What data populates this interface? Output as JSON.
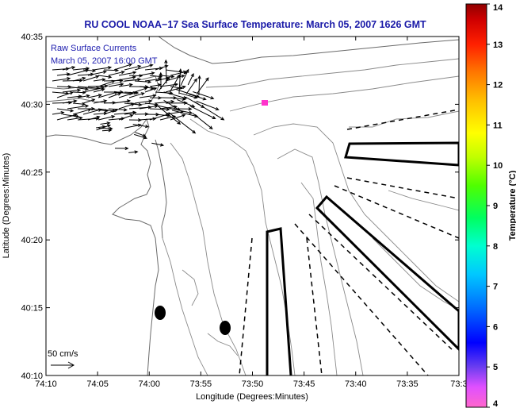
{
  "title": "RU COOL  NOAA−17  Sea Surface Temperature:  March 05, 2007 1626 GMT",
  "legend": {
    "line1": "Raw Surface Currents",
    "line2": "March 05, 2007 16:00 GMT"
  },
  "scale_label": "50 cm/s",
  "x_axis": {
    "label": "Longitude (Degrees:Minutes)",
    "ticks": [
      "74:10",
      "74:05",
      "74:00",
      "73:55",
      "73:50",
      "73:45",
      "73:40",
      "73:35",
      "73:3"
    ]
  },
  "y_axis": {
    "label": "Latitude (Degrees:Minutes)",
    "ticks": [
      "40:35",
      "40:30",
      "40:25",
      "40:20",
      "40:15",
      "40:10"
    ]
  },
  "colorbar": {
    "label": "Temperature (°C)",
    "ticks": [
      "14",
      "13",
      "12",
      "11",
      "10",
      "9",
      "8",
      "7",
      "6",
      "5",
      "4"
    ],
    "range": [
      4,
      14
    ],
    "colors": [
      "#ff66cc",
      "#d040ff",
      "#6a3df0",
      "#0000ff",
      "#0090ff",
      "#00e0ff",
      "#00ffb0",
      "#00ff40",
      "#60ff00",
      "#c8ff00",
      "#ffff00",
      "#ffc000",
      "#ff8000",
      "#ff3000",
      "#e00000",
      "#a00000"
    ]
  },
  "colors": {
    "title": "#1a1aa8",
    "vectors": "#000000",
    "contours": "#8a8a8a",
    "marker": "#ff33cc"
  }
}
